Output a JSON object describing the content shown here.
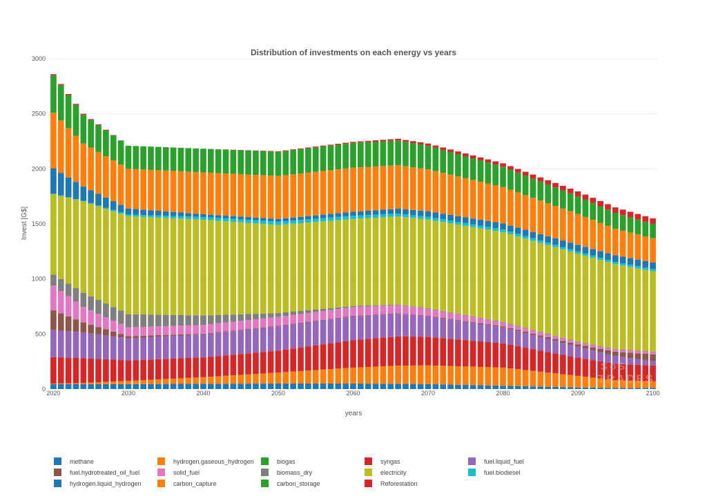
{
  "chart_data": {
    "type": "bar",
    "stacked": true,
    "title": "Distribution of investments on each energy vs years",
    "xlabel": "years",
    "ylabel": "Invest [G$]",
    "xlim": [
      2019.5,
      2100.5
    ],
    "ylim": [
      0,
      3000
    ],
    "x_ticks": [
      2020,
      2030,
      2040,
      2050,
      2060,
      2070,
      2080,
      2090,
      2100
    ],
    "y_ticks": [
      0,
      500,
      1000,
      1500,
      2000,
      2500,
      3000
    ],
    "grid": true,
    "legend_position": "bottom",
    "watermark": "SoSTrades",
    "x_key_years": [
      2020,
      2024,
      2030,
      2040,
      2050,
      2060,
      2066,
      2070,
      2080,
      2090,
      2095,
      2100
    ],
    "series": [
      {
        "name": "methane",
        "color": "#1f77b4",
        "key_values": [
          45,
          45,
          45,
          48,
          50,
          50,
          48,
          45,
          30,
          15,
          10,
          10
        ]
      },
      {
        "name": "carbon_capture",
        "color": "#ff7f0e",
        "key_values": [
          5,
          10,
          30,
          60,
          100,
          145,
          165,
          170,
          165,
          105,
          70,
          60
        ]
      },
      {
        "name": "syngas",
        "color": "#d62728",
        "key_values": [
          240,
          225,
          185,
          180,
          200,
          250,
          265,
          260,
          220,
          165,
          150,
          145
        ]
      },
      {
        "name": "fuel.liquid_fuel",
        "color": "#9467bd",
        "key_values": [
          245,
          235,
          200,
          210,
          220,
          215,
          205,
          185,
          145,
          100,
          70,
          40
        ]
      },
      {
        "name": "fuel.hydrotreated_oil_fuel",
        "color": "#8c564b",
        "key_values": [
          180,
          90,
          20,
          5,
          5,
          5,
          5,
          5,
          10,
          20,
          40,
          60
        ]
      },
      {
        "name": "solid_fuel",
        "color": "#e377c2",
        "key_values": [
          225,
          140,
          80,
          80,
          80,
          80,
          75,
          65,
          35,
          20,
          20,
          20
        ]
      },
      {
        "name": "biomass_dry",
        "color": "#7f7f7f",
        "key_values": [
          100,
          130,
          120,
          85,
          35,
          10,
          5,
          5,
          5,
          5,
          5,
          5
        ]
      },
      {
        "name": "electricity",
        "color": "#bcbd22",
        "key_values": [
          730,
          830,
          890,
          870,
          800,
          790,
          800,
          805,
          815,
          800,
          770,
          730
        ]
      },
      {
        "name": "fuel.biodiesel",
        "color": "#17becf",
        "key_values": [
          5,
          5,
          15,
          25,
          30,
          30,
          25,
          25,
          25,
          20,
          20,
          20
        ]
      },
      {
        "name": "hydrogen.liquid_hydrogen",
        "color": "#1f77b4",
        "key_values": [
          230,
          130,
          55,
          25,
          25,
          35,
          45,
          50,
          55,
          60,
          60,
          60
        ]
      },
      {
        "name": "hydrogen.gaseous_hydrogen",
        "color": "#ff7f0e",
        "key_values": [
          505,
          390,
          360,
          380,
          390,
          400,
          395,
          380,
          330,
          280,
          240,
          220
        ]
      },
      {
        "name": "carbon_storage",
        "color": "#2ca02c",
        "key_values": [
          340,
          260,
          210,
          215,
          220,
          225,
          225,
          215,
          185,
          160,
          145,
          130
        ]
      },
      {
        "name": "biogas",
        "color": "#2ca02c",
        "key_values": [
          0,
          0,
          0,
          0,
          0,
          0,
          0,
          0,
          0,
          0,
          0,
          0
        ]
      },
      {
        "name": "Reforestation",
        "color": "#d62728",
        "key_values": [
          10,
          10,
          0,
          0,
          5,
          10,
          15,
          20,
          30,
          45,
          50,
          50
        ]
      }
    ],
    "legend_order": [
      "methane",
      "hydrogen.gaseous_hydrogen",
      "biogas",
      "syngas",
      "fuel.liquid_fuel",
      "fuel.hydrotreated_oil_fuel",
      "solid_fuel",
      "biomass_dry",
      "electricity",
      "fuel.biodiesel",
      "hydrogen.liquid_hydrogen",
      "carbon_capture",
      "carbon_storage",
      "Reforestation"
    ]
  }
}
